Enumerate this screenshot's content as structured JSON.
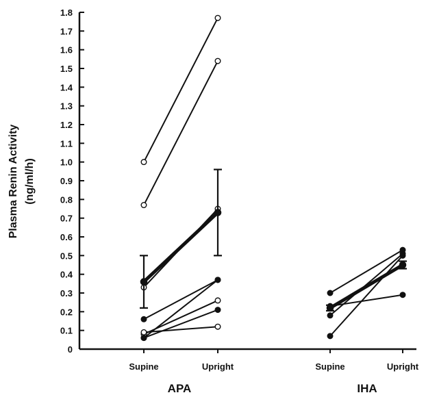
{
  "chart_data": {
    "type": "line",
    "ylabel": [
      "Plasma Renin Activity",
      "(ng/ml/h)"
    ],
    "ylim": [
      0,
      1.8
    ],
    "yticks": [
      0,
      0.1,
      0.2,
      0.3,
      0.4,
      0.5,
      0.6,
      0.7,
      0.8,
      0.9,
      1.0,
      1.1,
      1.2,
      1.3,
      1.4,
      1.5,
      1.6,
      1.7,
      1.8
    ],
    "ytick_labels": [
      "0",
      "0.1",
      "0.2",
      "0.3",
      "0.4",
      "0.5",
      "0.6",
      "0.7",
      "0.8",
      "0.9",
      "1.0",
      "1.1",
      "1.2",
      "1.3",
      "1.4",
      "1.5",
      "1.6",
      "1.7",
      "1.8"
    ],
    "groups": [
      {
        "name": "APA",
        "categories": [
          "Supine",
          "Upright"
        ],
        "series": [
          {
            "marker": "open",
            "values": [
              1.0,
              1.77
            ]
          },
          {
            "marker": "open",
            "values": [
              0.77,
              1.54
            ]
          },
          {
            "marker": "open",
            "values": [
              0.33,
              0.75
            ]
          },
          {
            "marker": "filled",
            "values": [
              0.06,
              0.37
            ]
          },
          {
            "marker": "filled",
            "values": [
              0.16,
              0.37
            ]
          },
          {
            "marker": "open",
            "values": [
              0.08,
              0.26
            ]
          },
          {
            "marker": "filled",
            "values": [
              0.06,
              0.21
            ]
          },
          {
            "marker": "open",
            "values": [
              0.09,
              0.12
            ]
          }
        ],
        "mean": {
          "values": [
            0.36,
            0.73
          ],
          "error": [
            0.14,
            0.23
          ]
        }
      },
      {
        "name": "IHA",
        "categories": [
          "Supine",
          "Upright"
        ],
        "series": [
          {
            "marker": "filled",
            "values": [
              0.3,
              0.53
            ]
          },
          {
            "marker": "filled",
            "values": [
              0.18,
              0.51
            ]
          },
          {
            "marker": "filled",
            "values": [
              0.07,
              0.5
            ]
          },
          {
            "marker": "filled",
            "values": [
              0.23,
              0.29
            ]
          }
        ],
        "mean": {
          "values": [
            0.22,
            0.45
          ],
          "error": [
            0.015,
            0.02
          ]
        }
      }
    ]
  }
}
